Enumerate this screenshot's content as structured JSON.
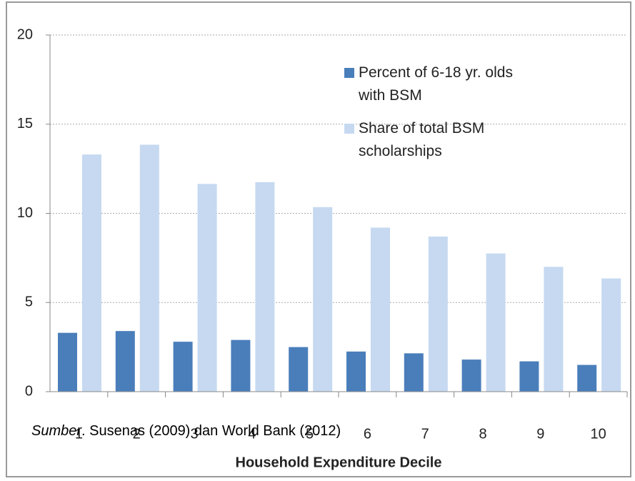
{
  "chart_data": {
    "type": "bar",
    "x_label": "Household Expenditure Decile",
    "categories": [
      "1",
      "2",
      "3",
      "4",
      "5",
      "6",
      "7",
      "8",
      "9",
      "10"
    ],
    "series": [
      {
        "name": "Percent of 6-18 yr. olds with BSM",
        "color": "#4a7ebb",
        "values": [
          3.3,
          3.4,
          2.8,
          2.9,
          2.5,
          2.25,
          2.15,
          1.8,
          1.7,
          1.5
        ]
      },
      {
        "name": "Share of total BSM scholarships",
        "color": "#c6d9f1",
        "values": [
          13.3,
          13.85,
          11.65,
          11.75,
          10.35,
          9.2,
          8.7,
          7.75,
          7.0,
          6.35
        ]
      }
    ],
    "ylim": [
      0,
      20
    ],
    "yticks": [
      0,
      5,
      10,
      15,
      20
    ],
    "grid": true,
    "source_label": "Sumber",
    "source_text": ".  Susenas (2009) dan World Bank (2012)"
  }
}
